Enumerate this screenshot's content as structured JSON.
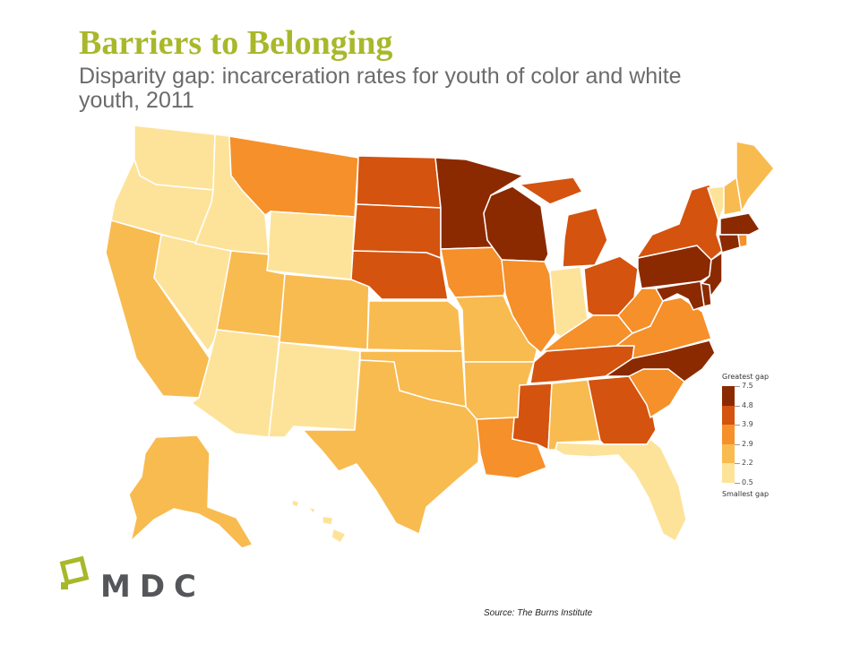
{
  "title": "Barriers to Belonging",
  "subtitle": "Disparity gap: incarceration rates for youth of color and white youth, 2011",
  "legend": {
    "greatest_label": "Greatest gap",
    "smallest_label": "Smallest gap",
    "bins": [
      {
        "label": "7.5",
        "color": "#8b2a00"
      },
      {
        "label": "4.8",
        "color": "#d4530f"
      },
      {
        "label": "3.9",
        "color": "#f5902a"
      },
      {
        "label": "2.9",
        "color": "#f8bb50"
      },
      {
        "label": "2.2",
        "color": "#fde39a"
      },
      {
        "label": "0.5",
        "color": ""
      }
    ]
  },
  "states": [
    {
      "id": "WA",
      "bin": 4
    },
    {
      "id": "OR",
      "bin": 4
    },
    {
      "id": "CA",
      "bin": 3
    },
    {
      "id": "NV",
      "bin": 4
    },
    {
      "id": "ID",
      "bin": 4
    },
    {
      "id": "MT",
      "bin": 2
    },
    {
      "id": "WY",
      "bin": 4
    },
    {
      "id": "UT",
      "bin": 3
    },
    {
      "id": "CO",
      "bin": 3
    },
    {
      "id": "AZ",
      "bin": 4
    },
    {
      "id": "NM",
      "bin": 4
    },
    {
      "id": "ND",
      "bin": 1
    },
    {
      "id": "SD",
      "bin": 1
    },
    {
      "id": "NE",
      "bin": 1
    },
    {
      "id": "KS",
      "bin": 3
    },
    {
      "id": "OK",
      "bin": 3
    },
    {
      "id": "TX",
      "bin": 3
    },
    {
      "id": "MN",
      "bin": 0
    },
    {
      "id": "IA",
      "bin": 2
    },
    {
      "id": "MO",
      "bin": 3
    },
    {
      "id": "AR",
      "bin": 3
    },
    {
      "id": "LA",
      "bin": 2
    },
    {
      "id": "WI",
      "bin": 0
    },
    {
      "id": "IL",
      "bin": 2
    },
    {
      "id": "MS",
      "bin": 1
    },
    {
      "id": "MI",
      "bin": 1
    },
    {
      "id": "IN",
      "bin": 4
    },
    {
      "id": "OH",
      "bin": 1
    },
    {
      "id": "KY",
      "bin": 2
    },
    {
      "id": "TN",
      "bin": 1
    },
    {
      "id": "AL",
      "bin": 3
    },
    {
      "id": "GA",
      "bin": 1
    },
    {
      "id": "FL",
      "bin": 4
    },
    {
      "id": "SC",
      "bin": 2
    },
    {
      "id": "NC",
      "bin": 0
    },
    {
      "id": "VA",
      "bin": 2
    },
    {
      "id": "WV",
      "bin": 2
    },
    {
      "id": "PA",
      "bin": 0
    },
    {
      "id": "NY",
      "bin": 1
    },
    {
      "id": "VT",
      "bin": 4
    },
    {
      "id": "NH",
      "bin": 3
    },
    {
      "id": "ME",
      "bin": 3
    },
    {
      "id": "MA",
      "bin": 0
    },
    {
      "id": "CT",
      "bin": 0
    },
    {
      "id": "RI",
      "bin": 2
    },
    {
      "id": "NJ",
      "bin": 0
    },
    {
      "id": "DE",
      "bin": 0
    },
    {
      "id": "MD",
      "bin": 0
    },
    {
      "id": "AK",
      "bin": 3
    },
    {
      "id": "HI",
      "bin": 4
    }
  ],
  "logo": {
    "text": "MDC",
    "color": "#a8b82a"
  },
  "source": "Source: The Burns Institute"
}
